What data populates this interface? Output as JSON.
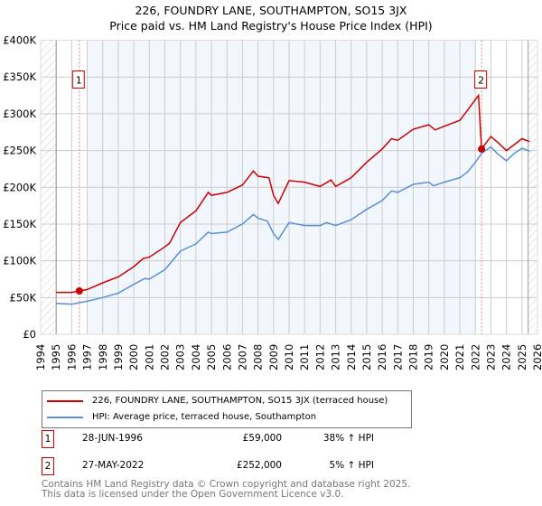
{
  "header": {
    "title": "226, FOUNDRY LANE, SOUTHAMPTON, SO15 3JX",
    "subtitle": "Price paid vs. HM Land Registry's House Price Index (HPI)"
  },
  "chart_data": {
    "type": "line",
    "title": "226, FOUNDRY LANE, SOUTHAMPTON, SO15 3JX",
    "subtitle": "Price paid vs. HM Land Registry's House Price Index (HPI)",
    "xlabel": "",
    "ylabel": "",
    "xlim": [
      1994,
      2026
    ],
    "ylim": [
      0,
      400000
    ],
    "xticks": [
      "1994",
      "1995",
      "1996",
      "1997",
      "1998",
      "1999",
      "2000",
      "2001",
      "2002",
      "2003",
      "2004",
      "2005",
      "2006",
      "2007",
      "2008",
      "2009",
      "2010",
      "2011",
      "2012",
      "2013",
      "2014",
      "2015",
      "2016",
      "2017",
      "2018",
      "2019",
      "2020",
      "2021",
      "2022",
      "2023",
      "2024",
      "2025",
      "2026"
    ],
    "yticks": [
      {
        "v": 0,
        "label": "£0"
      },
      {
        "v": 50000,
        "label": "£50K"
      },
      {
        "v": 100000,
        "label": "£100K"
      },
      {
        "v": 150000,
        "label": "£150K"
      },
      {
        "v": 200000,
        "label": "£200K"
      },
      {
        "v": 250000,
        "label": "£250K"
      },
      {
        "v": 300000,
        "label": "£300K"
      },
      {
        "v": 350000,
        "label": "£350K"
      },
      {
        "v": 400000,
        "label": "£400K"
      }
    ],
    "grid": true,
    "hatched_ranges": [
      [
        1994,
        1995
      ],
      [
        2025.4,
        2026
      ]
    ],
    "shaded_range": [
      1997,
      2022
    ],
    "series": [
      {
        "name": "226, FOUNDRY LANE, SOUTHAMPTON, SO15 3JX (terraced house)",
        "color": "#cc0000",
        "x": [
          1995,
          1996,
          1996.5,
          1997,
          1998,
          1999,
          2000,
          2000.6,
          2001,
          2002,
          2002.3,
          2003,
          2004,
          2004.8,
          2005,
          2006,
          2007,
          2007.7,
          2008,
          2008.7,
          2009,
          2009.3,
          2010,
          2011,
          2012,
          2012.7,
          2013,
          2014,
          2015,
          2016,
          2016.6,
          2017,
          2018,
          2019,
          2019.4,
          2020,
          2021,
          2021.5,
          2022.2,
          2022.4,
          2023,
          2023.5,
          2024,
          2024.5,
          2025,
          2025.5
        ],
        "y": [
          57000,
          57000,
          59000,
          61000,
          70000,
          78000,
          92000,
          103000,
          105000,
          119000,
          124000,
          152000,
          168000,
          193000,
          189000,
          193000,
          203000,
          222000,
          215000,
          213000,
          189000,
          178000,
          209000,
          207000,
          201000,
          210000,
          201000,
          213000,
          234000,
          252000,
          266000,
          264000,
          279000,
          285000,
          278000,
          283000,
          291000,
          305000,
          325000,
          252000,
          269000,
          260000,
          250000,
          258000,
          266000,
          262000
        ]
      },
      {
        "name": "HPI: Average price, terraced house, Southampton",
        "color": "#5b8fd6",
        "x": [
          1995,
          1996,
          1997,
          1998,
          1999,
          2000,
          2000.7,
          2001,
          2002,
          2003,
          2004,
          2004.8,
          2005,
          2006,
          2007,
          2007.7,
          2008,
          2008.6,
          2009,
          2009.3,
          2010,
          2011,
          2012,
          2012.4,
          2013,
          2014,
          2015,
          2016,
          2016.6,
          2017,
          2018,
          2019,
          2019.3,
          2020,
          2021,
          2021.5,
          2022,
          2022.4,
          2023,
          2023.4,
          2024,
          2024.5,
          2025,
          2025.5
        ],
        "y": [
          42000,
          41000,
          45000,
          50000,
          56000,
          68000,
          76000,
          75000,
          88000,
          113000,
          123000,
          139000,
          137000,
          139000,
          150000,
          163000,
          158000,
          154000,
          137000,
          129000,
          152000,
          148000,
          148000,
          152000,
          148000,
          156000,
          170000,
          182000,
          195000,
          193000,
          204000,
          207000,
          202000,
          207000,
          213000,
          221000,
          234000,
          246000,
          255000,
          246000,
          236000,
          246000,
          253000,
          249000
        ]
      }
    ],
    "annotations": [
      {
        "label": "1",
        "x": 1996.49,
        "y": 59000
      },
      {
        "label": "2",
        "x": 2022.4,
        "y": 252000
      }
    ]
  },
  "legend": {
    "items": [
      {
        "label": "226, FOUNDRY LANE, SOUTHAMPTON, SO15 3JX (terraced house)",
        "color": "#cc0000"
      },
      {
        "label": "HPI: Average price, terraced house, Southampton",
        "color": "#5b8fd6"
      }
    ]
  },
  "sales": [
    {
      "num": "1",
      "date": "28-JUN-1996",
      "price": "£59,000",
      "hpi": "38% ↑ HPI"
    },
    {
      "num": "2",
      "date": "27-MAY-2022",
      "price": "£252,000",
      "hpi": "5% ↑ HPI"
    }
  ],
  "footer": {
    "line1": "Contains HM Land Registry data © Crown copyright and database right 2025.",
    "line2": "This data is licensed under the Open Government Licence v3.0."
  }
}
